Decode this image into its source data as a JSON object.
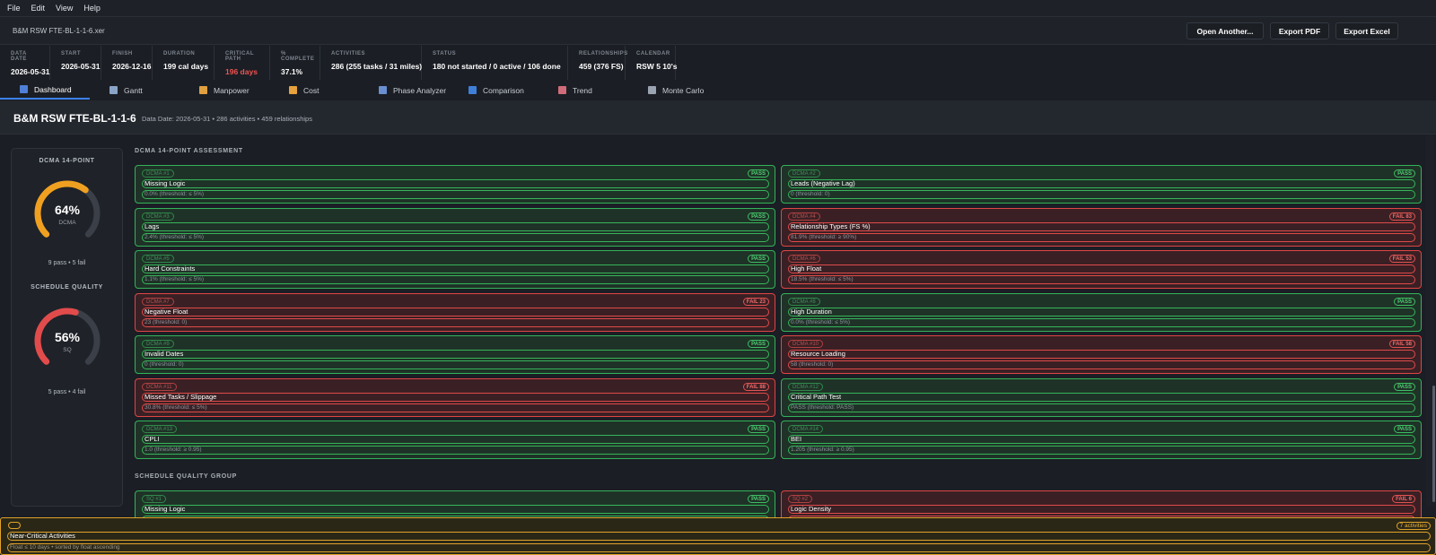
{
  "menu": [
    "File",
    "Edit",
    "View",
    "Help"
  ],
  "file_name": "B&M RSW FTE-BL-1-1-6.xer",
  "buttons": {
    "open": "Open Another...",
    "pdf": "Export PDF",
    "excel": "Export Excel"
  },
  "stats": [
    {
      "label": "DATA DATE",
      "value": "2026-05-31"
    },
    {
      "label": "START",
      "value": "2026-05-31"
    },
    {
      "label": "FINISH",
      "value": "2026-12-16"
    },
    {
      "label": "DURATION",
      "value": "199 cal days"
    },
    {
      "label": "CRITICAL PATH",
      "value": "196 days",
      "color": "#ef5350"
    },
    {
      "label": "% COMPLETE",
      "value": "37.1%"
    },
    {
      "label": "ACTIVITIES",
      "value": "286  (255 tasks / 31 miles)"
    },
    {
      "label": "STATUS",
      "value": "180 not started  /  0 active  /  106 done"
    },
    {
      "label": "RELATIONSHIPS",
      "value": "459  (376 FS)"
    },
    {
      "label": "CALENDAR",
      "value": "RSW 5 10's"
    }
  ],
  "tabs": [
    {
      "label": "Dashboard",
      "icon": "dashboard-icon",
      "color": "#4f7fd8"
    },
    {
      "label": "Gantt",
      "icon": "gantt-icon",
      "color": "#8aa4c8"
    },
    {
      "label": "Manpower",
      "icon": "manpower-icon",
      "color": "#e0a040"
    },
    {
      "label": "Cost",
      "icon": "cost-icon",
      "color": "#e6a23c"
    },
    {
      "label": "Phase Analyzer",
      "icon": "phase-analyzer-icon",
      "color": "#6a8fd0"
    },
    {
      "label": "Comparison",
      "icon": "comparison-icon",
      "color": "#3f7fd8"
    },
    {
      "label": "Trend",
      "icon": "trend-icon",
      "color": "#d06b7a"
    },
    {
      "label": "Monte Carlo",
      "icon": "monte-carlo-icon",
      "color": "#9aa3b0"
    }
  ],
  "page": {
    "title": "B&M RSW FTE-BL-1-1-6",
    "meta": "Data Date: 2026-05-31  •  286 activities  •  459 relationships"
  },
  "sidebar": {
    "dcma": {
      "heading": "DCMA 14-POINT",
      "percent": "64%",
      "value": 64,
      "name": "DCMA",
      "summary": "9 pass  •  5 fail",
      "color": "#f0a020"
    },
    "sq": {
      "heading": "SCHEDULE QUALITY",
      "percent": "56%",
      "value": 56,
      "name": "SQ",
      "summary": "5 pass  •  4 fail",
      "color": "#e24b4b"
    }
  },
  "sections": {
    "dcma": "DCMA 14-POINT ASSESSMENT",
    "sq": "SCHEDULE QUALITY GROUP"
  },
  "dcma_checks": [
    {
      "id": "DCMA #1",
      "name": "Missing Logic",
      "detail": "0.0%  (threshold: ≤ 5%)",
      "status": "pass",
      "badge": "PASS"
    },
    {
      "id": "DCMA #2",
      "name": "Leads (Negative Lag)",
      "detail": "0  (threshold: 0)",
      "status": "pass",
      "badge": "PASS"
    },
    {
      "id": "DCMA #3",
      "name": "Lags",
      "detail": "2.4%  (threshold: ≤ 5%)",
      "status": "pass",
      "badge": "PASS"
    },
    {
      "id": "DCMA #4",
      "name": "Relationship Types (FS %)",
      "detail": "81.9%  (threshold: ≥ 90%)",
      "status": "fail",
      "badge": "FAIL  83"
    },
    {
      "id": "DCMA #5",
      "name": "Hard Constraints",
      "detail": "1.1%  (threshold: ≤ 5%)",
      "status": "pass",
      "badge": "PASS"
    },
    {
      "id": "DCMA #6",
      "name": "High Float",
      "detail": "18.5%  (threshold: ≤ 5%)",
      "status": "fail",
      "badge": "FAIL  53"
    },
    {
      "id": "DCMA #7",
      "name": "Negative Float",
      "detail": "23  (threshold: 0)",
      "status": "fail",
      "badge": "FAIL  23"
    },
    {
      "id": "DCMA #8",
      "name": "High Duration",
      "detail": "0.0%  (threshold: ≤ 5%)",
      "status": "pass",
      "badge": "PASS"
    },
    {
      "id": "DCMA #9",
      "name": "Invalid Dates",
      "detail": "0  (threshold: 0)",
      "status": "pass",
      "badge": "PASS"
    },
    {
      "id": "DCMA #10",
      "name": "Resource Loading",
      "detail": "58  (threshold: 0)",
      "status": "fail",
      "badge": "FAIL  58"
    },
    {
      "id": "DCMA #11",
      "name": "Missed Tasks / Slippage",
      "detail": "30.8%  (threshold: ≤ 5%)",
      "status": "fail",
      "badge": "FAIL  88"
    },
    {
      "id": "DCMA #12",
      "name": "Critical Path Test",
      "detail": "PASS  (threshold: PASS)",
      "status": "pass",
      "badge": "PASS"
    },
    {
      "id": "DCMA #13",
      "name": "CPLI",
      "detail": "1.0  (threshold: ≥ 0.95)",
      "status": "pass",
      "badge": "PASS"
    },
    {
      "id": "DCMA #14",
      "name": "BEI",
      "detail": "1.205  (threshold: ≥ 0.95)",
      "status": "pass",
      "badge": "PASS"
    }
  ],
  "sq_checks": [
    {
      "id": "SQ #1",
      "name": "Missing Logic",
      "detail": "",
      "status": "pass",
      "badge": "PASS"
    },
    {
      "id": "SQ #2",
      "name": "Logic Density",
      "detail": "",
      "status": "fail",
      "badge": "FAIL  6"
    }
  ],
  "near_critical": {
    "title": "Near-Critical Activities",
    "detail": "Float ≤ 10 days  •  sorted by float ascending",
    "badge": "7 activities",
    "color": "#e0a32a"
  }
}
